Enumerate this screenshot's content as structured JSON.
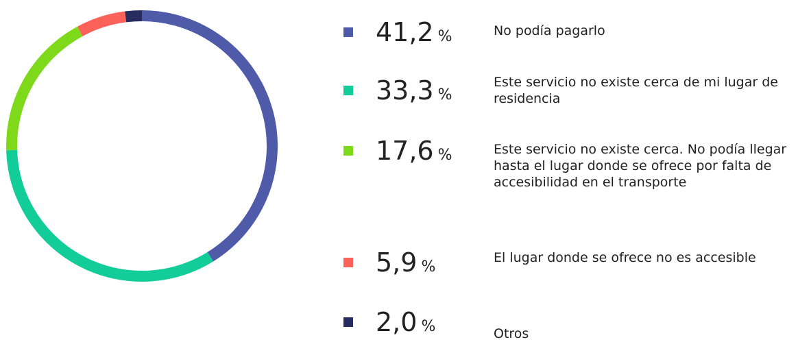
{
  "chart_data": {
    "type": "donut",
    "categories": [
      "No podía pagarlo",
      "Este servicio no existe cerca de mi lugar de residencia",
      "Este servicio no existe cerca. No podía llegar hasta el lugar donde se ofrece por falta de accesibilidad en el transporte",
      "El lugar donde se ofrece no es accesible",
      "Otros"
    ],
    "values": [
      41.2,
      33.3,
      17.6,
      5.9,
      2.0
    ],
    "value_labels": [
      "41,2",
      "33,3",
      "17,6",
      "5,9",
      "2,0"
    ],
    "unit": "%",
    "colors": [
      "#4f5aa8",
      "#12cc9a",
      "#7ed91a",
      "#fb6259",
      "#262c5e"
    ]
  }
}
